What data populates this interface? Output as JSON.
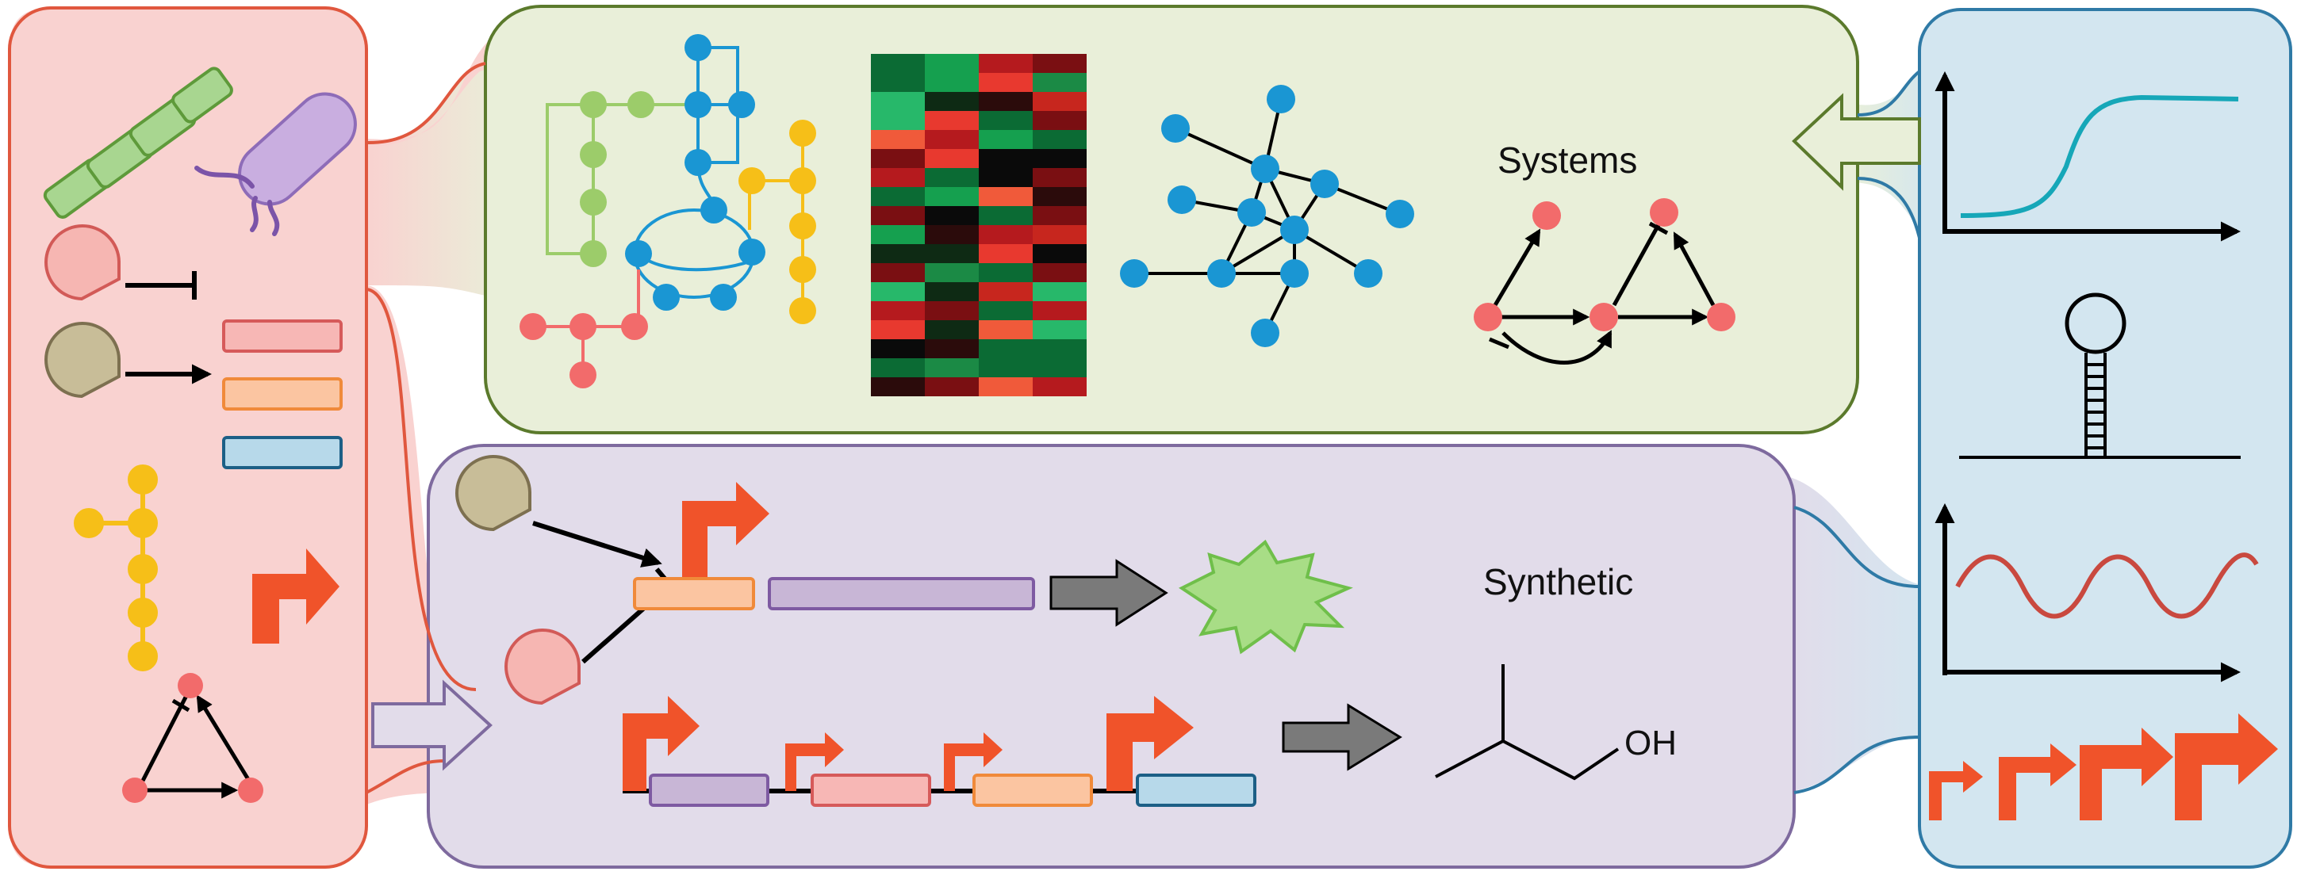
{
  "labels": {
    "systems": "Systems",
    "synthetic": "Synthetic",
    "oh": "OH"
  },
  "colors": {
    "parts_fill": "#f9d2d0",
    "parts_border": "#e0573e",
    "systems_fill": "#e9efd9",
    "systems_border": "#5b7a2c",
    "synthetic_fill": "#e2dcea",
    "synthetic_border": "#7e6a9e",
    "design_fill": "#d3e6f0",
    "design_border": "#2f7aa6",
    "promoter": "#f0532a",
    "node_blue": "#1a96d3",
    "node_green": "#9ccc6a",
    "node_yellow": "#f6bf18",
    "node_red": "#f26b6b",
    "sigmoid": "#16a7b8",
    "oscillation": "#c9493f",
    "bar_pink": "#f7b7b5",
    "bar_orange": "#fbc5a1",
    "bar_blue": "#b7d9ea",
    "bar_purple": "#c8b6d6",
    "star_green": "#a8dd86"
  },
  "icons": [
    "rod-bacterium-icon",
    "flagellated-bacterium-icon",
    "protein-repressor-icon",
    "protein-activator-icon",
    "gene-part-icon",
    "promoter-arrow-icon",
    "pathway-tree-icon",
    "feedback-triangle-icon",
    "heatmap-icon",
    "interaction-network-icon",
    "hairpin-rna-icon",
    "sigmoid-response-icon",
    "oscillator-response-icon",
    "graded-promoter-icon",
    "product-burst-icon",
    "isobutanol-molecule-icon"
  ]
}
